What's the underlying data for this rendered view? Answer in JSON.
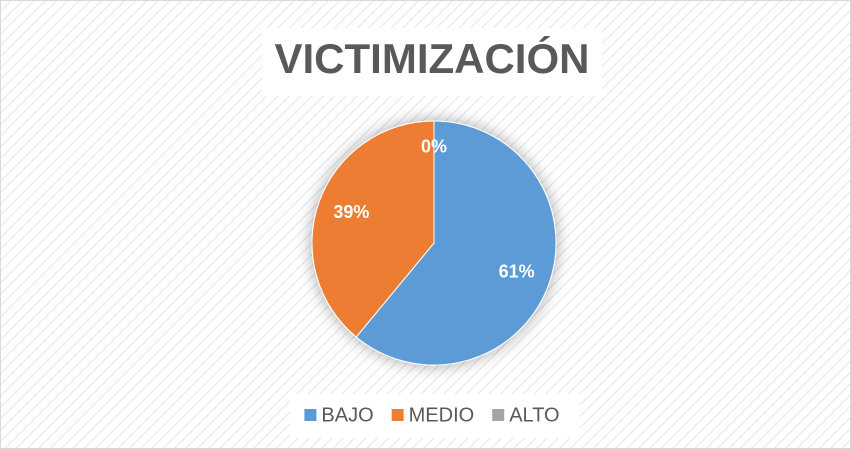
{
  "chart_data": {
    "type": "pie",
    "title": "VICTIMIZACIÓN",
    "categories": [
      "BAJO",
      "MEDIO",
      "ALTO"
    ],
    "values": [
      61,
      39,
      0
    ],
    "value_labels": [
      "61%",
      "39%",
      "0%"
    ],
    "colors": [
      "#5b9bd5",
      "#ed7d31",
      "#a5a5a5"
    ],
    "legend": "bottom"
  }
}
